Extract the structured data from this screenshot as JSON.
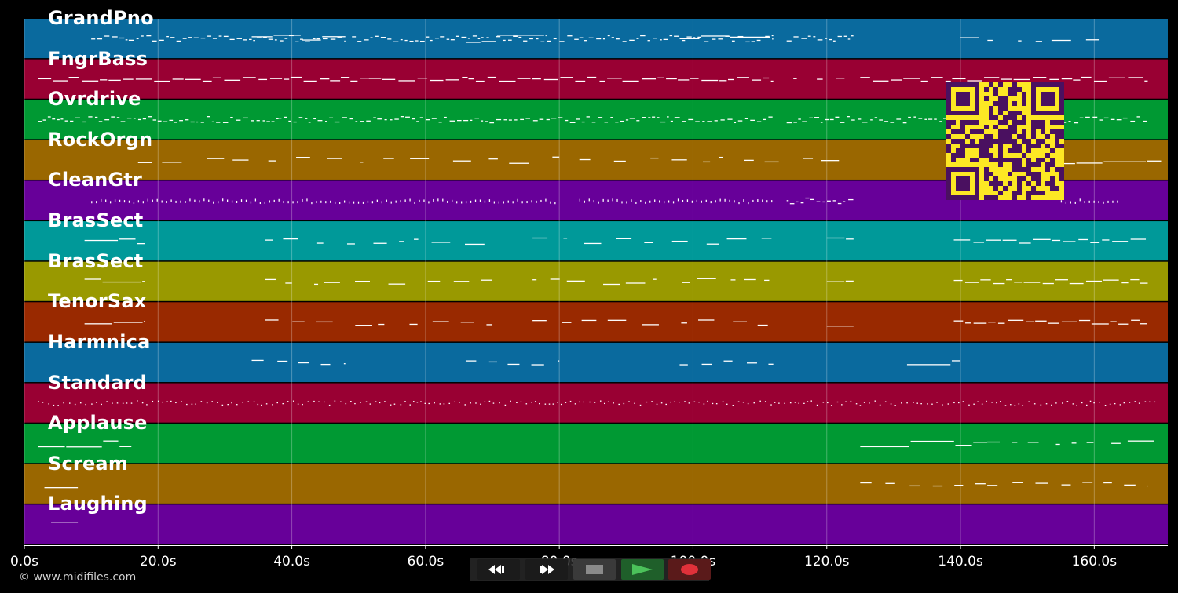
{
  "tracks": [
    {
      "name": "GrandPno",
      "color": "#0a6a9e"
    },
    {
      "name": "FngrBass",
      "color": "#990033"
    },
    {
      "name": "Ovrdrive",
      "color": "#009933"
    },
    {
      "name": "RockOrgn",
      "color": "#9a6700"
    },
    {
      "name": "CleanGtr",
      "color": "#670099"
    },
    {
      "name": "BrasSect",
      "color": "#009999"
    },
    {
      "name": "BrasSect",
      "color": "#999900"
    },
    {
      "name": "TenorSax",
      "color": "#992900"
    },
    {
      "name": "Harmnica",
      "color": "#0a6a9e"
    },
    {
      "name": "Standard",
      "color": "#990033"
    },
    {
      "name": "Applause",
      "color": "#009933"
    },
    {
      "name": "Scream",
      "color": "#9a6700"
    },
    {
      "name": "Laughing",
      "color": "#670099"
    }
  ],
  "time_axis": {
    "ticks": [
      "0.0s",
      "20.0s",
      "40.0s",
      "60.0s",
      "80.0s",
      "100.0s",
      "120.0s",
      "140.0s",
      "160.0s"
    ],
    "tick_values": [
      0,
      20,
      40,
      60,
      80,
      100,
      120,
      140,
      160
    ],
    "max_seconds": 171
  },
  "transport": {
    "buttons": [
      {
        "id": "rewind",
        "icon": "rewind-icon"
      },
      {
        "id": "fast-forward",
        "icon": "fast-forward-icon"
      },
      {
        "id": "stop",
        "icon": "stop-icon"
      },
      {
        "id": "play",
        "icon": "play-icon"
      },
      {
        "id": "record",
        "icon": "record-icon"
      }
    ]
  },
  "footer": {
    "credit": "© www.midifiles.com"
  }
}
